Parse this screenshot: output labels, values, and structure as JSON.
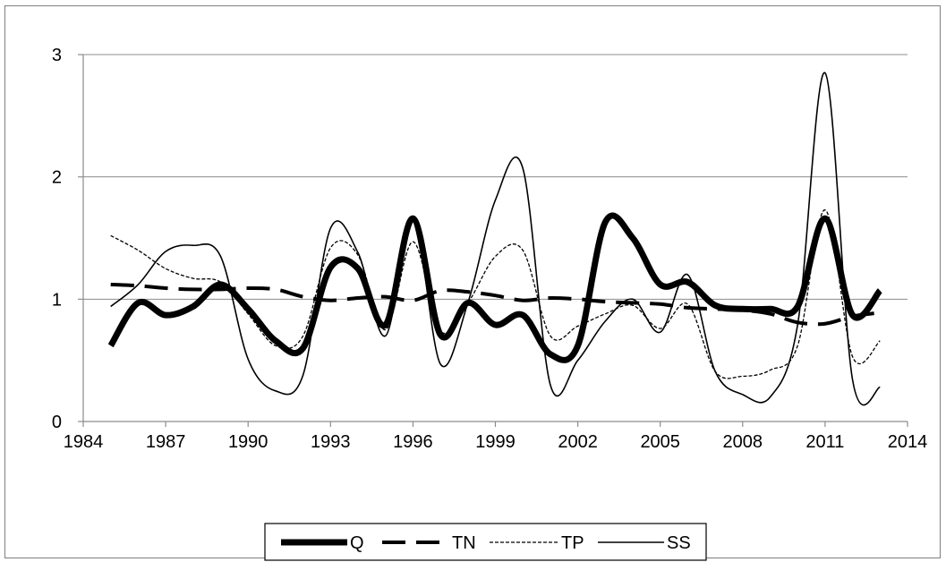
{
  "chart_data": {
    "type": "line",
    "title": "",
    "xlabel": "",
    "ylabel": "",
    "xlim": [
      1984,
      2014
    ],
    "ylim": [
      0,
      3
    ],
    "xticks": [
      1984,
      1987,
      1990,
      1993,
      1996,
      1999,
      2002,
      2005,
      2008,
      2011,
      2014
    ],
    "yticks": [
      0,
      1,
      2,
      3
    ],
    "xtick_labels": [
      "1984",
      "1987",
      "1990",
      "1993",
      "1996",
      "1999",
      "2002",
      "2005",
      "2008",
      "2011",
      "2014"
    ],
    "ytick_labels": [
      "0",
      "1",
      "2",
      "3"
    ],
    "grid": "horizontal",
    "legend_position": "bottom",
    "x": [
      1985,
      1986,
      1987,
      1988,
      1989,
      1990,
      1991,
      1992,
      1993,
      1994,
      1995,
      1996,
      1997,
      1998,
      1999,
      2000,
      2001,
      2002,
      2003,
      2004,
      2005,
      2006,
      2007,
      2008,
      2009,
      2010,
      2011,
      2012,
      2013
    ],
    "series": [
      {
        "name": "Q",
        "style": "thick",
        "values": [
          0.62,
          0.97,
          0.87,
          0.94,
          1.12,
          0.92,
          0.66,
          0.6,
          1.26,
          1.25,
          0.79,
          1.66,
          0.71,
          0.97,
          0.79,
          0.87,
          0.55,
          0.62,
          1.63,
          1.5,
          1.12,
          1.14,
          0.95,
          0.92,
          0.92,
          0.94,
          1.66,
          0.87,
          1.07
        ]
      },
      {
        "name": "TN",
        "style": "dashed",
        "values": [
          1.12,
          1.11,
          1.09,
          1.08,
          1.08,
          1.09,
          1.08,
          1.02,
          0.99,
          1.01,
          1.02,
          0.99,
          1.07,
          1.06,
          1.03,
          0.99,
          1.01,
          1.0,
          0.98,
          0.97,
          0.96,
          0.93,
          0.92,
          0.91,
          0.88,
          0.81,
          0.8,
          0.86,
          0.89
        ]
      },
      {
        "name": "TP",
        "style": "dotted",
        "values": [
          1.52,
          1.4,
          1.25,
          1.17,
          1.14,
          0.88,
          0.62,
          0.7,
          1.42,
          1.36,
          0.75,
          1.47,
          0.74,
          0.97,
          1.35,
          1.4,
          0.7,
          0.78,
          0.88,
          0.95,
          0.76,
          0.96,
          0.41,
          0.37,
          0.42,
          0.62,
          1.73,
          0.53,
          0.66
        ]
      },
      {
        "name": "SS",
        "style": "thin",
        "values": [
          0.94,
          1.12,
          1.39,
          1.44,
          1.35,
          0.51,
          0.25,
          0.38,
          1.58,
          1.38,
          0.7,
          1.66,
          0.47,
          0.97,
          1.81,
          2.07,
          0.3,
          0.5,
          0.82,
          1.0,
          0.73,
          1.2,
          0.41,
          0.22,
          0.2,
          0.79,
          2.85,
          0.34,
          0.28
        ]
      }
    ]
  },
  "colors": {
    "line": "#000000",
    "grid": "#8c8c8c",
    "axis": "#8c8c8c",
    "frame": "#7f7f7f"
  }
}
